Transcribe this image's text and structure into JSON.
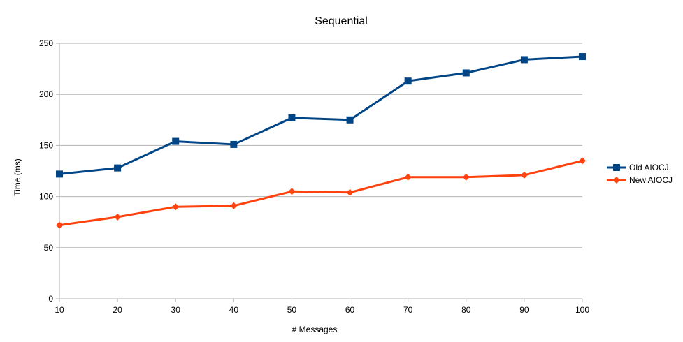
{
  "chart_data": {
    "type": "line",
    "title": "Sequential",
    "xlabel": "# Messages",
    "ylabel": "Time (ms)",
    "x": [
      10,
      20,
      30,
      40,
      50,
      60,
      70,
      80,
      90,
      100
    ],
    "xlim": [
      10,
      100
    ],
    "ylim": [
      0,
      250
    ],
    "yticks": [
      0,
      50,
      100,
      150,
      200,
      250
    ],
    "grid": "horizontal",
    "legend_position": "right",
    "series": [
      {
        "name": "Old AIOCJ",
        "color": "#004586",
        "marker": "square",
        "values": [
          122,
          128,
          154,
          151,
          177,
          175,
          213,
          221,
          234,
          237
        ]
      },
      {
        "name": "New AIOCJ",
        "color": "#ff420e",
        "marker": "diamond",
        "values": [
          72,
          80,
          90,
          91,
          105,
          104,
          119,
          119,
          121,
          135
        ]
      }
    ]
  }
}
